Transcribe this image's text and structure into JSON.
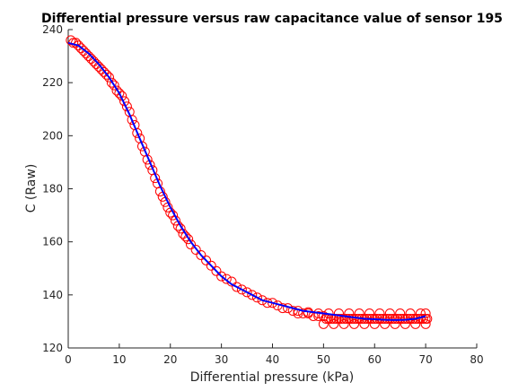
{
  "chart_data": {
    "type": "scatter",
    "title": "Differential pressure versus raw capacitance value of sensor 195",
    "xlabel": "Differential pressure (kPa)",
    "ylabel": "C (Raw)",
    "xlim": [
      0,
      80
    ],
    "ylim": [
      120,
      240
    ],
    "xticks": [
      "0",
      "10",
      "20",
      "30",
      "40",
      "50",
      "60",
      "70",
      "80"
    ],
    "yticks": [
      "120",
      "140",
      "160",
      "180",
      "200",
      "220",
      "240"
    ],
    "grid": false,
    "legend": "none",
    "series": [
      {
        "kind": "markers",
        "marker": "circle",
        "color": "#ff0000",
        "x": [
          0.5,
          1,
          1.5,
          2,
          2.5,
          3,
          3.5,
          4,
          4.5,
          5,
          5.5,
          6,
          6.5,
          7,
          7.5,
          8,
          8.5,
          9,
          9.5,
          10,
          10.5,
          11,
          11.5,
          12,
          12.5,
          13,
          13.5,
          14,
          14.5,
          15,
          15.5,
          16,
          16.5,
          17,
          17.5,
          18,
          18.5,
          19,
          19.5,
          20,
          20.5,
          21,
          21.5,
          22,
          22.5,
          23,
          23.5,
          24,
          25,
          26,
          27,
          28,
          29,
          30,
          31,
          32,
          33,
          34,
          35,
          36,
          37,
          38,
          39,
          40,
          41,
          42,
          43,
          44,
          45,
          46,
          47,
          48,
          49,
          50,
          50.5,
          51,
          51.5,
          52,
          52.5,
          53,
          53.5,
          54,
          54.5,
          55,
          55.5,
          56,
          56.5,
          57,
          57.5,
          58,
          58.5,
          59,
          59.5,
          60,
          60.5,
          61,
          61.5,
          62,
          62.5,
          63,
          63.5,
          64,
          64.5,
          65,
          65.5,
          66,
          66.5,
          67,
          67.5,
          68,
          68.5,
          69,
          69.5,
          70,
          70.3
        ],
        "y": [
          236,
          235,
          235,
          234,
          233,
          232,
          231,
          230,
          229,
          228,
          227,
          226,
          225,
          224,
          223,
          222,
          220,
          219,
          217,
          216,
          215,
          213,
          211,
          209,
          206,
          204,
          201,
          199,
          196,
          194,
          191,
          189,
          187,
          184,
          182,
          179,
          177,
          175,
          173,
          171,
          170,
          168,
          166,
          165,
          163,
          162,
          161,
          159,
          157,
          155,
          153,
          151,
          149,
          147,
          146,
          145,
          143,
          142,
          141,
          140,
          139,
          138,
          137,
          137,
          136,
          135,
          135,
          134,
          133,
          133,
          133,
          132,
          132,
          132,
          131,
          131,
          131,
          131,
          131,
          131,
          131,
          131,
          131,
          131,
          131,
          131,
          131,
          131,
          131,
          131,
          131,
          131,
          131,
          131,
          131,
          131,
          131,
          131,
          131,
          131,
          131,
          131,
          131,
          131,
          131,
          131,
          131,
          131,
          131,
          131,
          131,
          131,
          131,
          131,
          131
        ],
        "extra_points": [
          {
            "x": [
              45,
              47,
              49,
              51,
              53,
              55,
              57,
              59,
              61,
              63,
              65,
              67,
              69,
              70
            ],
            "y": [
              134,
              133.5,
              133,
              133,
              133,
              133,
              133,
              133,
              133,
              133,
              133,
              133,
              133,
              133
            ]
          },
          {
            "x": [
              50,
              52,
              54,
              56,
              58,
              60,
              62,
              64,
              66,
              68,
              70
            ],
            "y": [
              129,
              129,
              129,
              129,
              129,
              129,
              129,
              129,
              129,
              129,
              129
            ]
          }
        ]
      },
      {
        "kind": "line",
        "color": "#0000ff",
        "x": [
          0,
          2,
          4,
          6,
          8,
          10,
          12,
          14,
          16,
          18,
          20,
          22,
          24,
          26,
          28,
          30,
          32,
          34,
          36,
          38,
          40,
          42,
          44,
          46,
          48,
          50,
          52,
          54,
          56,
          58,
          60,
          62,
          64,
          66,
          68,
          70
        ],
        "y": [
          235,
          234,
          231,
          227,
          222,
          216,
          208,
          199,
          190,
          181,
          173,
          166,
          160,
          155,
          151,
          147,
          144,
          142,
          140,
          138,
          137,
          136,
          135,
          134,
          133.5,
          133,
          132.5,
          132,
          131.5,
          131,
          130.8,
          130.6,
          130.5,
          130.6,
          131,
          132
        ]
      }
    ]
  }
}
